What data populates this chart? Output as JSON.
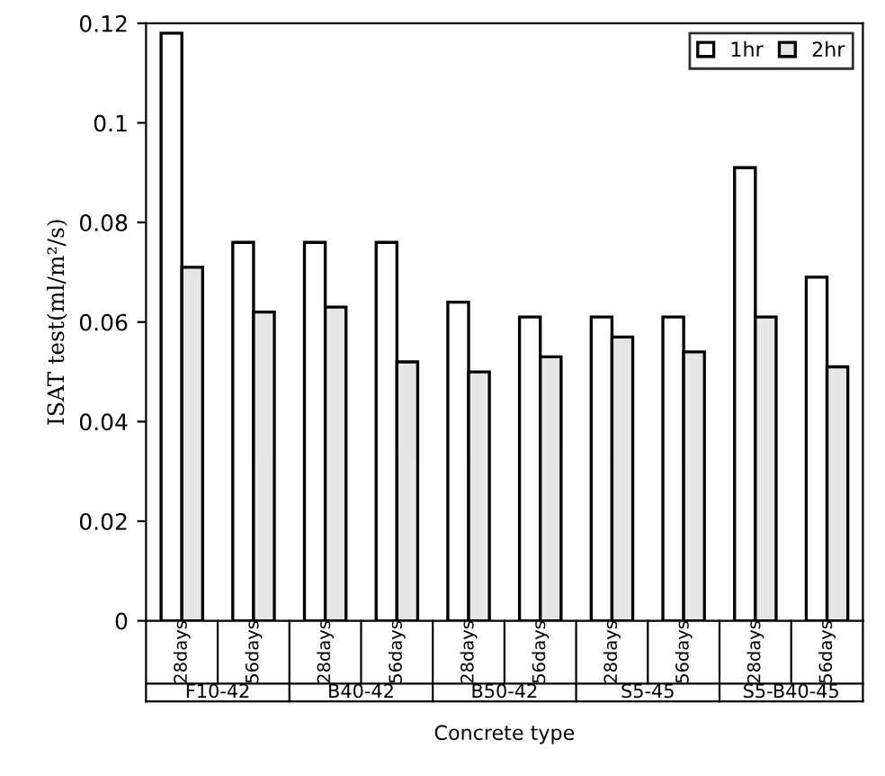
{
  "chart_data": {
    "type": "bar",
    "xlabel": "Concrete type",
    "ylabel": "ISAT test(ml/m²/s)",
    "categories": [
      "28days",
      "56days",
      "28days",
      "56days",
      "28days",
      "56days",
      "28days",
      "56days",
      "28days",
      "56days"
    ],
    "series": [
      {
        "name": "1hr",
        "color": "#ffffff",
        "values": [
          0.118,
          0.076,
          0.076,
          0.076,
          0.064,
          0.061,
          0.061,
          0.061,
          0.091,
          0.069
        ]
      },
      {
        "name": "2hr",
        "color": "#e6e6e6",
        "values": [
          0.071,
          0.062,
          0.063,
          0.052,
          0.05,
          0.053,
          0.057,
          0.054,
          0.061,
          0.051
        ]
      }
    ],
    "annotations": [
      "F10-42",
      "B40-42",
      "B50-42",
      "S5-45",
      "S5-B40-45"
    ],
    "ylim": [
      0,
      0.12
    ],
    "yticks": [
      0,
      0.02,
      0.04,
      0.06,
      0.08,
      {
        "value": 0.1,
        "label": "0.1"
      },
      0.12
    ],
    "legend": "top right",
    "grid": false
  }
}
